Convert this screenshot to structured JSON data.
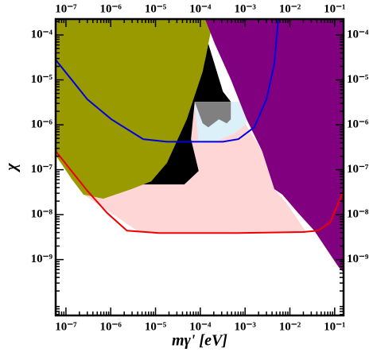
{
  "chart_data": {
    "type": "line",
    "xlabel": "mγ' [eV]",
    "ylabel": "χ",
    "xscale": "log",
    "yscale": "log",
    "xlim": [
      5.9e-08,
      0.158
    ],
    "ylim": [
      5.7e-11,
      0.000226
    ],
    "xticks": [
      {
        "value": 1e-07,
        "label": "10⁻⁷"
      },
      {
        "value": 1e-06,
        "label": "10⁻⁶"
      },
      {
        "value": 1e-05,
        "label": "10⁻⁵"
      },
      {
        "value": 0.0001,
        "label": "10⁻⁴"
      },
      {
        "value": 0.001,
        "label": "10⁻³"
      },
      {
        "value": 0.01,
        "label": "10⁻²"
      },
      {
        "value": 0.1,
        "label": "10⁻¹"
      }
    ],
    "yticks": [
      {
        "value": 1e-09,
        "label": "10⁻⁹"
      },
      {
        "value": 1e-08,
        "label": "10⁻⁸"
      },
      {
        "value": 1e-07,
        "label": "10⁻⁷"
      },
      {
        "value": 1e-06,
        "label": "10⁻⁶"
      },
      {
        "value": 1e-05,
        "label": "10⁻⁵"
      },
      {
        "value": 0.0001,
        "label": "10⁻⁴"
      }
    ],
    "areas": [
      {
        "color": "#ffd6d6",
        "x": [
          2.46e-07,
          1.55e-06,
          4.3e-06,
          0.023,
          0.0083,
          0.0045,
          0.0024,
          0.00088,
          0.00071,
          7.5e-05,
          6.2e-05,
          9.2e-05,
          4.4e-05,
          3.5e-06,
          6.8e-07
        ],
        "y": [
          2.8e-08,
          8.2e-09,
          4.1e-09,
          4.1e-09,
          1.84e-08,
          3.7e-08,
          2.6e-07,
          1.33e-06,
          3.26e-06,
          3.26e-06,
          4.8e-07,
          9.4e-08,
          4.7e-08,
          4.7e-08,
          2.26e-08
        ]
      },
      {
        "color": "#000000",
        "x": [
          0.000151,
          0.00032,
          0.00048,
          7.5e-05,
          6.2e-05,
          9.2e-05,
          4.4e-05,
          3.5e-06,
          8e-06,
          2.2e-05,
          6.2e-05,
          0.000128
        ],
        "y": [
          6.4e-05,
          5.5e-06,
          3.26e-06,
          3.26e-06,
          4.8e-07,
          9.4e-08,
          4.7e-08,
          4.7e-08,
          5.5e-08,
          2.6e-07,
          3e-06,
          2.8e-05
        ]
      },
      {
        "color": "#999900",
        "x": [
          5.9e-08,
          0.000193,
          0.000171,
          0.000113,
          5e-05,
          1.8e-05,
          8e-06,
          2.9e-06,
          6.8e-07,
          2.46e-07,
          1.33e-07,
          5.9e-08
        ],
        "y": [
          0.000226,
          0.000226,
          0.000118,
          1.53e-05,
          1.33e-06,
          1.41e-07,
          5.5e-08,
          3.7e-08,
          2.26e-08,
          2.8e-08,
          6.3e-08,
          2.1e-07
        ]
      },
      {
        "color": "#dcf0fa",
        "x": [
          7.5e-05,
          0.00088,
          0.00108,
          0.00058,
          0.00021,
          9.2e-05
        ],
        "y": [
          3.26e-06,
          3.26e-06,
          1.08e-06,
          6.4e-07,
          4.2e-07,
          3.9e-07
        ]
      },
      {
        "color": "#808080",
        "x": [
          7.5e-05,
          0.00048,
          0.00048,
          0.00039,
          0.00026,
          0.000151,
          0.000113
        ],
        "y": [
          3.26e-06,
          3.26e-06,
          1.33e-06,
          1.08e-06,
          1.33e-06,
          8.8e-07,
          1.08e-06
        ]
      },
      {
        "color": "#800080",
        "x": [
          0.000128,
          0.158,
          0.158,
          0.119,
          0.035,
          0.0154,
          0.0068,
          0.0045,
          0.0024,
          0.00108,
          0.00048,
          0.00021
        ],
        "y": [
          0.000226,
          0.000226,
          5.1e-10,
          7.1e-10,
          4.4e-09,
          1.08e-08,
          2.8e-08,
          3.7e-08,
          2.6e-07,
          1.33e-06,
          1.02e-05,
          6.4e-05
        ]
      }
    ],
    "series": [
      {
        "color": "#0000dd",
        "x": [
          5.9e-08,
          1.33e-07,
          3e-07,
          1.03e-06,
          5.3e-06,
          1.8e-05,
          0.00032,
          0.00071,
          0.0016,
          0.003,
          0.0045,
          0.0055
        ],
        "values": [
          2.8e-05,
          1.02e-05,
          3.7e-06,
          1.33e-06,
          4.8e-07,
          4.2e-07,
          4.2e-07,
          4.8e-07,
          8.8e-07,
          3.7e-06,
          2.3e-05,
          0.000226
        ]
      },
      {
        "color": "#ee0000",
        "x": [
          5.9e-08,
          1.33e-07,
          3e-07,
          8.4e-07,
          2.3e-06,
          1.2e-05,
          0.00071,
          0.019,
          0.043,
          0.079,
          0.158
        ],
        "values": [
          2.6e-07,
          9.4e-08,
          3.4e-08,
          1.08e-08,
          4.4e-09,
          3.9e-09,
          3.9e-09,
          4.1e-09,
          4.4e-09,
          6.7e-09,
          3.4e-08
        ]
      }
    ]
  }
}
